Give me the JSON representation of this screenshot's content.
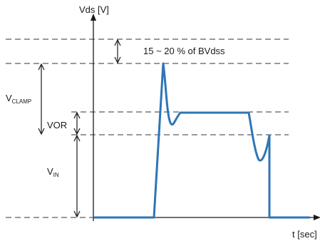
{
  "axes": {
    "y_label": "Vds [V]",
    "x_label": "t [sec]"
  },
  "annotations": {
    "bvdss_margin": "15 ~ 20 % of BVdss",
    "vclamp_main": "V",
    "vclamp_sub": "CLAMP",
    "vor": "VOR",
    "vin_main": "V",
    "vin_sub": "IN"
  },
  "colors": {
    "waveform": "#2e75b6",
    "axes": "#1a1a1a",
    "dashed": "#333333"
  }
}
